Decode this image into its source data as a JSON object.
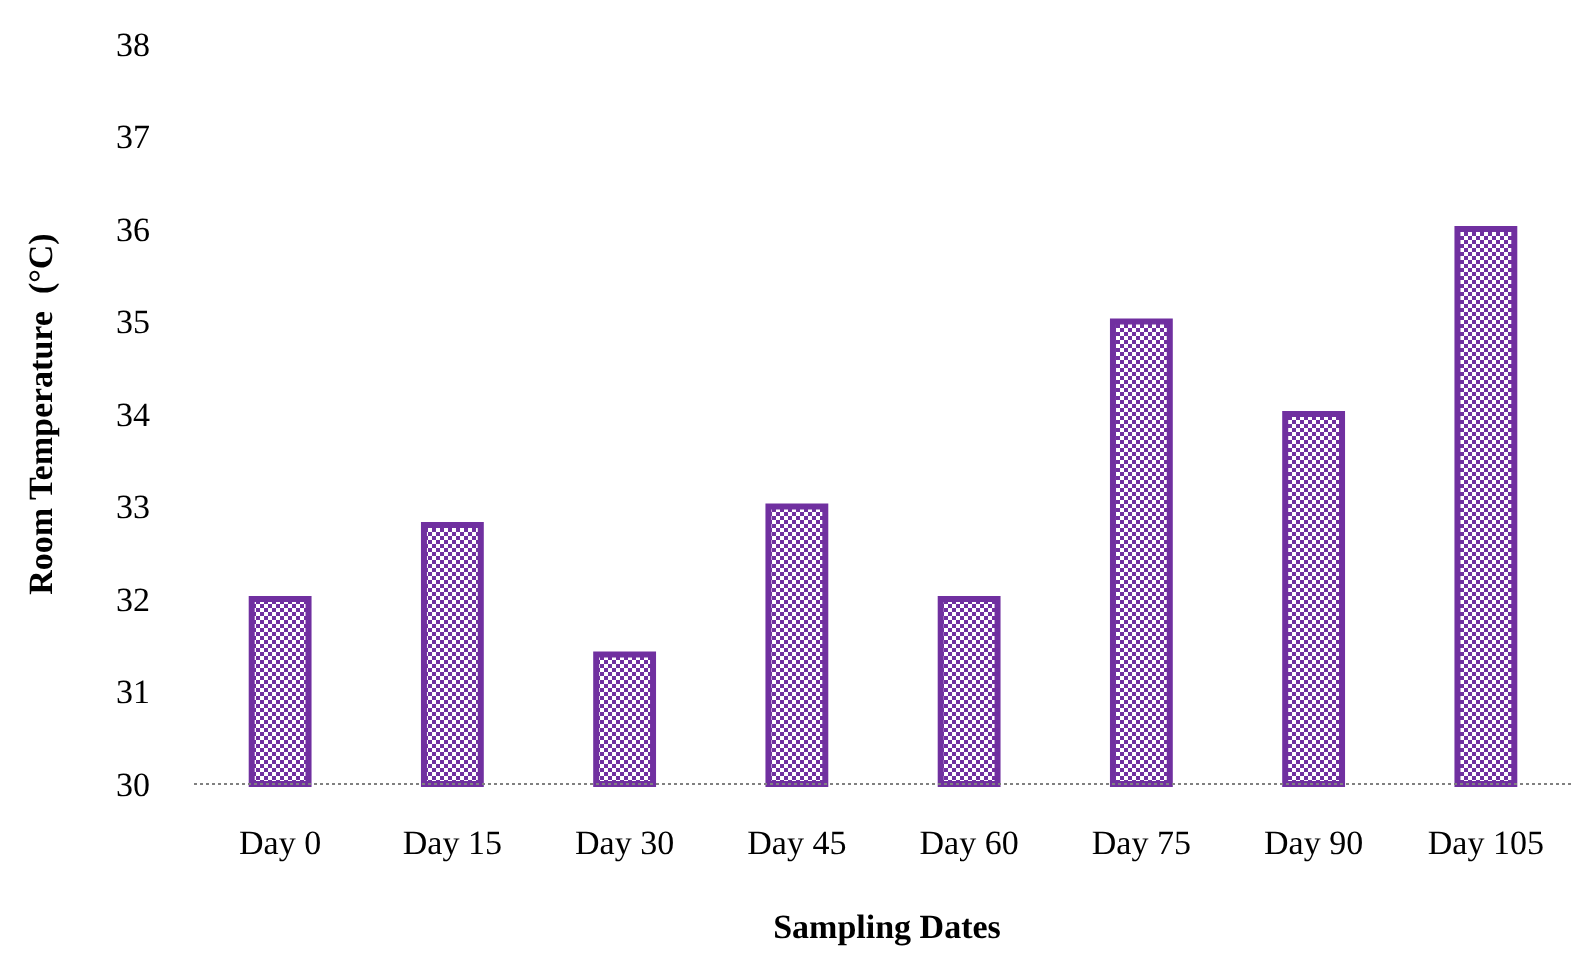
{
  "chart_data": {
    "type": "bar",
    "xlabel": "Sampling Dates",
    "ylabel": "Room Temperature  (°C)",
    "categories": [
      "Day 0",
      "Day 15",
      "Day 30",
      "Day 45",
      "Day 60",
      "Day 75",
      "Day 90",
      "Day 105"
    ],
    "values": [
      32,
      32.8,
      31.4,
      33,
      32,
      35,
      34,
      36
    ],
    "color": "#7030a0",
    "ylim": [
      30,
      38
    ],
    "yticks": [
      30,
      31,
      32,
      33,
      34,
      35,
      36,
      37,
      38
    ],
    "grid": false
  }
}
